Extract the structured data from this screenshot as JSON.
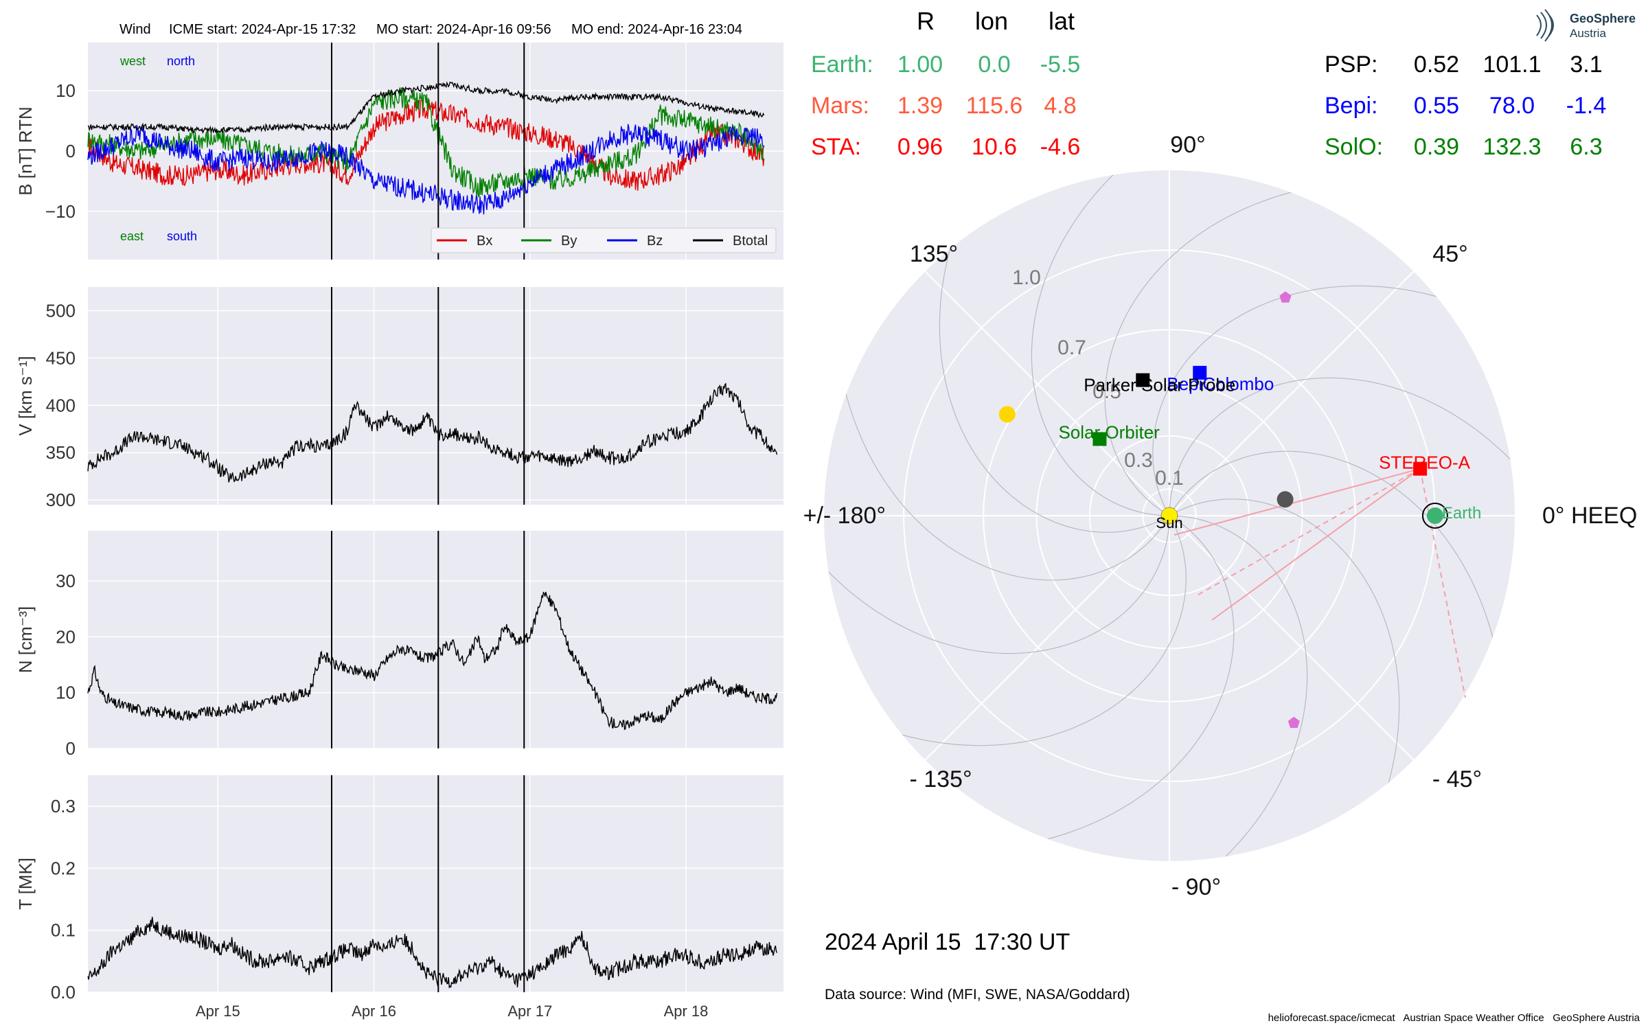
{
  "header": {
    "spacecraft": "Wind",
    "icme_start": "ICME start: 2024-Apr-15 17:32",
    "mo_start": "MO start: 2024-Apr-16 09:56",
    "mo_end": "MO end: 2024-Apr-16 23:04"
  },
  "colors": {
    "bx": "#e00000",
    "by": "#008000",
    "bz": "#0000ee",
    "btotal": "#000000",
    "panel_bg": "#eaeaf2",
    "earth": "#3cb371",
    "mars": "#ff5a3c",
    "sta": "#ff0000",
    "bepi": "#0000ff",
    "solo": "#008000",
    "psp": "#000000",
    "sun": "#ffee00",
    "magenta": "#da70d6"
  },
  "chart_data": [
    {
      "type": "line",
      "name": "magnetic-field",
      "ylabel": "B [nT] RTN",
      "ylim": [
        -18,
        18
      ],
      "yticks": [
        "10",
        "0",
        "−10"
      ],
      "ytick_values": [
        10,
        0,
        -10
      ],
      "quadrant_labels": {
        "west": "west",
        "north": "north",
        "east": "east",
        "south": "south"
      },
      "legend": [
        "Bx",
        "By",
        "Bz",
        "Btotal"
      ],
      "x_start": "2024-04-14T04:00",
      "x_end": "2024-04-18T11:00",
      "series": [
        {
          "name": "Bx",
          "x": [
            0,
            4,
            8,
            12,
            16,
            20,
            24,
            28,
            32,
            36,
            40,
            44,
            48,
            52,
            56,
            60,
            64,
            68,
            72,
            76,
            80,
            84,
            88,
            92,
            96,
            100,
            104
          ],
          "values": [
            1,
            -2,
            -3,
            -4,
            -4,
            -3,
            -4,
            -3,
            -2,
            -2,
            -4,
            4,
            6,
            7,
            6,
            5,
            4,
            3,
            2,
            0,
            -4,
            -5,
            -4,
            -2,
            3,
            2,
            -1
          ]
        },
        {
          "name": "By",
          "x": [
            0,
            4,
            8,
            12,
            16,
            20,
            24,
            28,
            32,
            36,
            40,
            44,
            48,
            52,
            56,
            60,
            64,
            68,
            72,
            76,
            80,
            84,
            88,
            92,
            96,
            100,
            104
          ],
          "values": [
            2,
            1,
            0,
            1,
            2,
            2,
            1,
            0,
            -1,
            0,
            -2,
            8,
            9,
            8,
            -3,
            -6,
            -5,
            -4,
            -5,
            -4,
            -2,
            -1,
            6,
            5,
            4,
            3,
            0
          ]
        },
        {
          "name": "Bz",
          "x": [
            0,
            4,
            8,
            12,
            16,
            20,
            24,
            28,
            32,
            36,
            40,
            44,
            48,
            52,
            56,
            60,
            64,
            68,
            72,
            76,
            80,
            84,
            88,
            92,
            96,
            100,
            104
          ],
          "values": [
            -1,
            1,
            3,
            1,
            0,
            -2,
            -1,
            -2,
            -1,
            0,
            -1,
            -5,
            -6,
            -7,
            -8,
            -9,
            -8,
            -5,
            -3,
            -1,
            2,
            3,
            2,
            0,
            1,
            3,
            2
          ]
        },
        {
          "name": "Btotal",
          "x": [
            0,
            4,
            8,
            12,
            16,
            20,
            24,
            28,
            32,
            36,
            40,
            44,
            48,
            52,
            56,
            60,
            64,
            68,
            72,
            76,
            80,
            84,
            88,
            92,
            96,
            100,
            104
          ],
          "values": [
            4,
            4,
            4,
            4,
            3.5,
            3.5,
            3.5,
            4,
            4,
            4,
            4,
            9,
            10,
            10.5,
            11,
            10,
            10,
            9,
            8.5,
            9,
            9,
            9,
            9,
            8,
            7,
            6.5,
            6
          ]
        }
      ]
    },
    {
      "type": "line",
      "name": "speed",
      "ylabel": "V [km s⁻¹]",
      "ylim": [
        295,
        525
      ],
      "yticks": [
        "500",
        "450",
        "400",
        "350",
        "300"
      ],
      "ytick_values": [
        500,
        450,
        400,
        350,
        300
      ],
      "series": [
        {
          "name": "V",
          "x": [
            0,
            2,
            4,
            6,
            8,
            10,
            12,
            14,
            16,
            18,
            20,
            22,
            24,
            26,
            28,
            30,
            32,
            34,
            36,
            38,
            40,
            41,
            44,
            46,
            48,
            50,
            52,
            54,
            56,
            58,
            60,
            62,
            64,
            66,
            68,
            70,
            72,
            74,
            76,
            78,
            80,
            82,
            84,
            86,
            88,
            90,
            92,
            94,
            96,
            98,
            100,
            102,
            104,
            106
          ],
          "values": [
            335,
            345,
            350,
            362,
            368,
            364,
            362,
            358,
            352,
            346,
            334,
            322,
            326,
            334,
            341,
            339,
            356,
            358,
            355,
            362,
            372,
            404,
            375,
            390,
            380,
            372,
            388,
            368,
            372,
            364,
            366,
            355,
            352,
            345,
            346,
            345,
            342,
            340,
            345,
            352,
            345,
            342,
            350,
            362,
            365,
            370,
            372,
            385,
            408,
            420,
            405,
            375,
            365,
            345
          ]
        }
      ]
    },
    {
      "type": "line",
      "name": "density",
      "ylabel": "N [cm⁻³]",
      "ylim": [
        0,
        39
      ],
      "yticks": [
        "30",
        "20",
        "10",
        "0"
      ],
      "ytick_values": [
        30,
        20,
        10,
        0
      ],
      "series": [
        {
          "name": "N",
          "x": [
            0,
            1,
            2,
            4,
            6,
            8,
            10,
            12,
            14,
            16,
            18,
            20,
            22,
            24,
            26,
            28,
            30,
            32,
            34,
            36,
            38,
            40,
            42,
            44,
            46,
            48,
            50,
            52,
            54,
            56,
            58,
            60,
            61,
            63,
            64,
            66,
            68,
            70,
            72,
            74,
            76,
            78,
            80,
            82,
            84,
            86,
            88,
            90,
            92,
            94,
            96,
            98,
            100,
            102,
            104,
            106
          ],
          "values": [
            10,
            14,
            10,
            8,
            7.5,
            7,
            6.5,
            6.5,
            6,
            6,
            6.5,
            6.5,
            7,
            7.5,
            8,
            8.5,
            9,
            9.5,
            10,
            17,
            15,
            14,
            14,
            13,
            16,
            18,
            17,
            16,
            17,
            19,
            15,
            20,
            16,
            18,
            22,
            19,
            20,
            28,
            25,
            18,
            14,
            10,
            5,
            4,
            5,
            6,
            5,
            8,
            10,
            11,
            12,
            10,
            11,
            9.5,
            9,
            9
          ]
        }
      ]
    },
    {
      "type": "line",
      "name": "temperature",
      "ylabel": "T [MK]",
      "ylim": [
        0,
        0.35
      ],
      "yticks": [
        "0.3",
        "0.2",
        "0.1",
        "0.0"
      ],
      "ytick_values": [
        0.3,
        0.2,
        0.1,
        0.0
      ],
      "xticks": [
        "Apr 15",
        "Apr 16",
        "Apr 17",
        "Apr 18"
      ],
      "xtick_hours": [
        20,
        44,
        68,
        92
      ],
      "event_lines_hours": [
        37.5,
        53.9,
        67.1
      ],
      "series": [
        {
          "name": "T",
          "x": [
            0,
            2,
            4,
            6,
            8,
            10,
            12,
            14,
            16,
            18,
            20,
            22,
            24,
            26,
            28,
            30,
            32,
            34,
            36,
            38,
            40,
            42,
            44,
            46,
            48,
            50,
            52,
            54,
            56,
            58,
            60,
            62,
            64,
            66,
            68,
            70,
            72,
            74,
            76,
            78,
            80,
            82,
            84,
            86,
            88,
            90,
            92,
            94,
            96,
            98,
            100,
            102,
            104,
            106
          ],
          "values": [
            0.02,
            0.04,
            0.07,
            0.08,
            0.1,
            0.11,
            0.1,
            0.09,
            0.09,
            0.08,
            0.07,
            0.08,
            0.06,
            0.05,
            0.05,
            0.06,
            0.05,
            0.04,
            0.05,
            0.06,
            0.07,
            0.06,
            0.08,
            0.07,
            0.09,
            0.07,
            0.03,
            0.02,
            0.02,
            0.03,
            0.04,
            0.05,
            0.03,
            0.02,
            0.03,
            0.04,
            0.06,
            0.07,
            0.09,
            0.04,
            0.03,
            0.04,
            0.05,
            0.05,
            0.05,
            0.06,
            0.06,
            0.05,
            0.05,
            0.06,
            0.06,
            0.07,
            0.07,
            0.07
          ]
        }
      ]
    },
    {
      "type": "scatter",
      "name": "polar-position-plot",
      "angle_labels": {
        "a0": "0° HEEQ",
        "a45": "45°",
        "a90": "90°",
        "a135": "135°",
        "a180": "+/- 180°",
        "am135": "- 135°",
        "am90": "- 90°",
        "am45": "- 45°"
      },
      "radial_ticks": [
        "0.1",
        "0.3",
        "0.5",
        "0.7",
        "1.0"
      ],
      "radial_values": [
        0.1,
        0.3,
        0.5,
        0.7,
        1.0
      ],
      "rmax": 1.3,
      "bodies": [
        {
          "label": "Sun",
          "r": 0,
          "lon": 0,
          "marker": "circle",
          "colorkey": "sun"
        },
        {
          "label": "Earth",
          "r": 1.0,
          "lon": 0,
          "marker": "circle",
          "colorkey": "earth"
        },
        {
          "label": "STEREO-A",
          "r": 0.96,
          "lon": 10.6,
          "marker": "square",
          "colorkey": "sta"
        },
        {
          "label": "BepiColombo",
          "r": 0.55,
          "lon": 78.0,
          "marker": "square",
          "colorkey": "bepi"
        },
        {
          "label": "Parker Solar Probe",
          "r": 0.52,
          "lon": 101.1,
          "marker": "square",
          "colorkey": "psp"
        },
        {
          "label": "Solar Orbiter",
          "r": 0.39,
          "lon": 132.3,
          "marker": "square",
          "colorkey": "solo"
        }
      ],
      "extras": [
        {
          "r": 0.44,
          "lon": 8,
          "marker": "circle",
          "color": "#555555"
        },
        {
          "r": 0.72,
          "lon": 148,
          "marker": "circle",
          "color": "#ffd700"
        },
        {
          "r": 0.93,
          "lon": 62,
          "marker": "pentagon",
          "color": "#da70d6"
        },
        {
          "r": 0.91,
          "lon": -59,
          "marker": "pentagon",
          "color": "#da70d6"
        }
      ]
    }
  ],
  "positions_table": {
    "headers": {
      "r": "R",
      "lon": "lon",
      "lat": "lat"
    },
    "left": [
      {
        "name": "Earth:",
        "r": "1.00",
        "lon": "0.0",
        "lat": "-5.5",
        "colorkey": "earth"
      },
      {
        "name": "Mars:",
        "r": "1.39",
        "lon": "115.6",
        "lat": "4.8",
        "colorkey": "mars"
      },
      {
        "name": "STA:",
        "r": "0.96",
        "lon": "10.6",
        "lat": "-4.6",
        "colorkey": "sta"
      }
    ],
    "right": [
      {
        "name": "PSP:",
        "r": "0.52",
        "lon": "101.1",
        "lat": "3.1",
        "colorkey": "psp"
      },
      {
        "name": "Bepi:",
        "r": "0.55",
        "lon": "78.0",
        "lat": "-1.4",
        "colorkey": "bepi"
      },
      {
        "name": "SolO:",
        "r": "0.39",
        "lon": "132.3",
        "lat": "6.3",
        "colorkey": "solo"
      }
    ]
  },
  "footer": {
    "datetime": "2024 April 15  17:30 UT",
    "source": "Data source: Wind (MFI, SWE, NASA/Goddard)",
    "credits": "helioforecast.space/icmecat   Austrian Space Weather Office   GeoSphere Austria"
  },
  "logo": {
    "line1": "GeoSphere",
    "line2": "Austria",
    "icon": "geosphere-logo-icon"
  }
}
